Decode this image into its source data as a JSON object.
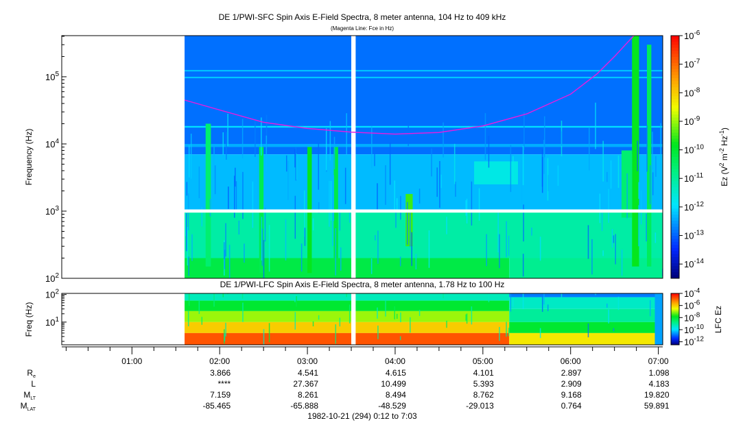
{
  "chart_data": [
    {
      "type": "heatmap",
      "title": "DE 1/PWI-SFC  Spin Axis E-Field Spectra, 8 meter antenna, 104 Hz to 409 kHz",
      "subtitle": "(Magenta Line: Fce in Hz)",
      "ylabel": "Frequency (Hz)",
      "yscale": "log",
      "ylim": [
        100,
        409000
      ],
      "yticks": [
        {
          "v": 100,
          "base": "10",
          "exp": "2"
        },
        {
          "v": 1000,
          "base": "10",
          "exp": "3"
        },
        {
          "v": 10000,
          "base": "10",
          "exp": "4"
        },
        {
          "v": 100000,
          "base": "10",
          "exp": "5"
        }
      ],
      "xlim_hours": [
        0.2,
        7.05
      ],
      "colorbar": {
        "label_main": "Ez (V",
        "label_parts": [
          "Ez (V",
          "2",
          " m",
          "-2",
          " Hz",
          "-1",
          ")"
        ],
        "log_range": [
          -14.5,
          -6
        ],
        "ticks": [
          {
            "v": -6,
            "exp": "-6"
          },
          {
            "v": -7,
            "exp": "-7"
          },
          {
            "v": -8,
            "exp": "-8"
          },
          {
            "v": -9,
            "exp": "-9"
          },
          {
            "v": -10,
            "exp": "-10"
          },
          {
            "v": -11,
            "exp": "-11"
          },
          {
            "v": -12,
            "exp": "-12"
          },
          {
            "v": -13,
            "exp": "-13"
          },
          {
            "v": -14,
            "exp": "-14"
          }
        ]
      },
      "regions": [
        {
          "t": [
            1.6,
            7.05
          ],
          "f": [
            7000,
            409000
          ],
          "logP": -12.9
        },
        {
          "t": [
            1.6,
            7.05
          ],
          "f": [
            1000,
            7000
          ],
          "logP": -12.3
        },
        {
          "t": [
            1.6,
            7.05
          ],
          "f": [
            200,
            1000
          ],
          "logP": -11.1
        },
        {
          "t": [
            1.6,
            5.3
          ],
          "f": [
            100,
            200
          ],
          "logP": -10.2
        },
        {
          "t": [
            5.3,
            7.05
          ],
          "f": [
            100,
            200
          ],
          "logP": -10.9
        },
        {
          "t": [
            1.6,
            7.05
          ],
          "f": [
            17500,
            18500
          ],
          "logP": -12.0
        },
        {
          "t": [
            1.6,
            7.05
          ],
          "f": [
            95000,
            100000
          ],
          "logP": -12.2
        },
        {
          "t": [
            1.6,
            7.05
          ],
          "f": [
            120000,
            126000
          ],
          "logP": -12.2
        },
        {
          "t": [
            1.6,
            7.05
          ],
          "f": [
            9000,
            10000
          ],
          "logP": -12.4
        },
        {
          "t": [
            4.9,
            5.4
          ],
          "f": [
            2500,
            5500
          ],
          "logP": -11.7
        },
        {
          "t": [
            6.7,
            6.78
          ],
          "f": [
            150,
            409000
          ],
          "logP": -9.8
        },
        {
          "t": [
            6.58,
            6.7
          ],
          "f": [
            800,
            8000
          ],
          "logP": -10.6
        },
        {
          "t": [
            1.84,
            1.9
          ],
          "f": [
            150,
            20000
          ],
          "logP": -10.6
        },
        {
          "t": [
            2.45,
            2.5
          ],
          "f": [
            120,
            9000
          ],
          "logP": -10.3
        },
        {
          "t": [
            3.0,
            3.05
          ],
          "f": [
            120,
            9000
          ],
          "logP": -9.8
        },
        {
          "t": [
            3.3,
            3.35
          ],
          "f": [
            120,
            9000
          ],
          "logP": -10.2
        },
        {
          "t": [
            4.12,
            4.2
          ],
          "f": [
            300,
            1800
          ],
          "logP": -9.5
        },
        {
          "t": [
            6.87,
            6.92
          ],
          "f": [
            150,
            300000
          ],
          "logP": -10.4
        }
      ],
      "gaps": [
        {
          "t": [
            3.5,
            3.55
          ],
          "f": [
            100,
            409000
          ]
        },
        {
          "t": [
            1.6,
            7.05
          ],
          "f": [
            950,
            1060
          ]
        }
      ],
      "fce_line": {
        "color": "#e020e0",
        "points": [
          [
            1.6,
            45000
          ],
          [
            2.0,
            32000
          ],
          [
            2.5,
            21000
          ],
          [
            3.0,
            17000
          ],
          [
            3.5,
            15000
          ],
          [
            4.0,
            14000
          ],
          [
            4.5,
            14800
          ],
          [
            5.0,
            18500
          ],
          [
            5.5,
            28000
          ],
          [
            6.0,
            55000
          ],
          [
            6.3,
            110000
          ],
          [
            6.5,
            200000
          ],
          [
            6.72,
            409000
          ]
        ]
      }
    },
    {
      "type": "heatmap",
      "title": "DE 1/PWI-LFC  Spin Axis E-Field Spectra, 8 meter antenna, 1.78 Hz to 100 Hz",
      "ylabel": "Freq (Hz)",
      "yscale": "log",
      "ylim": [
        1.5,
        110
      ],
      "yticks": [
        {
          "v": 10,
          "base": "10",
          "exp": "1"
        },
        {
          "v": 100,
          "base": "10",
          "exp": "2"
        }
      ],
      "colorbar": {
        "label": "LFC Ez",
        "log_range": [
          -12.5,
          -4
        ],
        "ticks": [
          {
            "v": -4,
            "exp": "-4"
          },
          {
            "v": -6,
            "exp": "-6"
          },
          {
            "v": -8,
            "exp": "-8"
          },
          {
            "v": -10,
            "exp": "-10"
          },
          {
            "v": -12,
            "exp": "-12"
          }
        ]
      },
      "regions": [
        {
          "t": [
            1.6,
            5.3
          ],
          "f": [
            60,
            110
          ],
          "logP": -9.3
        },
        {
          "t": [
            1.6,
            5.3
          ],
          "f": [
            25,
            60
          ],
          "logP": -8.0
        },
        {
          "t": [
            1.6,
            5.3
          ],
          "f": [
            10,
            25
          ],
          "logP": -7.0
        },
        {
          "t": [
            1.6,
            5.3
          ],
          "f": [
            4,
            10
          ],
          "logP": -6.0
        },
        {
          "t": [
            1.6,
            5.3
          ],
          "f": [
            1.5,
            4
          ],
          "logP": -4.8
        },
        {
          "t": [
            5.3,
            7.05
          ],
          "f": [
            80,
            110
          ],
          "logP": -10.8
        },
        {
          "t": [
            5.3,
            7.05
          ],
          "f": [
            30,
            80
          ],
          "logP": -9.4
        },
        {
          "t": [
            5.3,
            7.05
          ],
          "f": [
            10,
            30
          ],
          "logP": -9.0
        },
        {
          "t": [
            5.3,
            7.05
          ],
          "f": [
            4,
            10
          ],
          "logP": -8.0
        },
        {
          "t": [
            5.3,
            7.05
          ],
          "f": [
            1.5,
            4
          ],
          "logP": -6.3
        },
        {
          "t": [
            6.96,
            7.05
          ],
          "f": [
            1.5,
            110
          ],
          "logP": -10.5
        }
      ],
      "gaps": [
        {
          "t": [
            3.5,
            3.55
          ],
          "f": [
            1.5,
            110
          ]
        }
      ]
    }
  ],
  "time_axis": {
    "ticks": [
      {
        "h": 1,
        "label": "01:00"
      },
      {
        "h": 2,
        "label": "02:00"
      },
      {
        "h": 3,
        "label": "03:00"
      },
      {
        "h": 4,
        "label": "04:00"
      },
      {
        "h": 5,
        "label": "05:00"
      },
      {
        "h": 6,
        "label": "06:00"
      },
      {
        "h": 7,
        "label": "07:00"
      }
    ],
    "caption": "1982-10-21 (294) 0:12 to 7:03"
  },
  "ephemeris": [
    {
      "label": "R",
      "sub": "e",
      "values": [
        "3.866",
        "4.541",
        "4.615",
        "4.101",
        "2.897",
        "1.098"
      ]
    },
    {
      "label": "L",
      "sub": "",
      "values": [
        "****",
        "27.367",
        "10.499",
        "5.393",
        "2.909",
        "4.183"
      ]
    },
    {
      "label": "M",
      "sub": "LT",
      "values": [
        "7.159",
        "8.261",
        "8.494",
        "8.762",
        "9.168",
        "19.820"
      ]
    },
    {
      "label": "M",
      "sub": "LAT",
      "values": [
        "-85.465",
        "-65.888",
        "-48.529",
        "-29.013",
        "0.764",
        "59.891"
      ]
    }
  ]
}
